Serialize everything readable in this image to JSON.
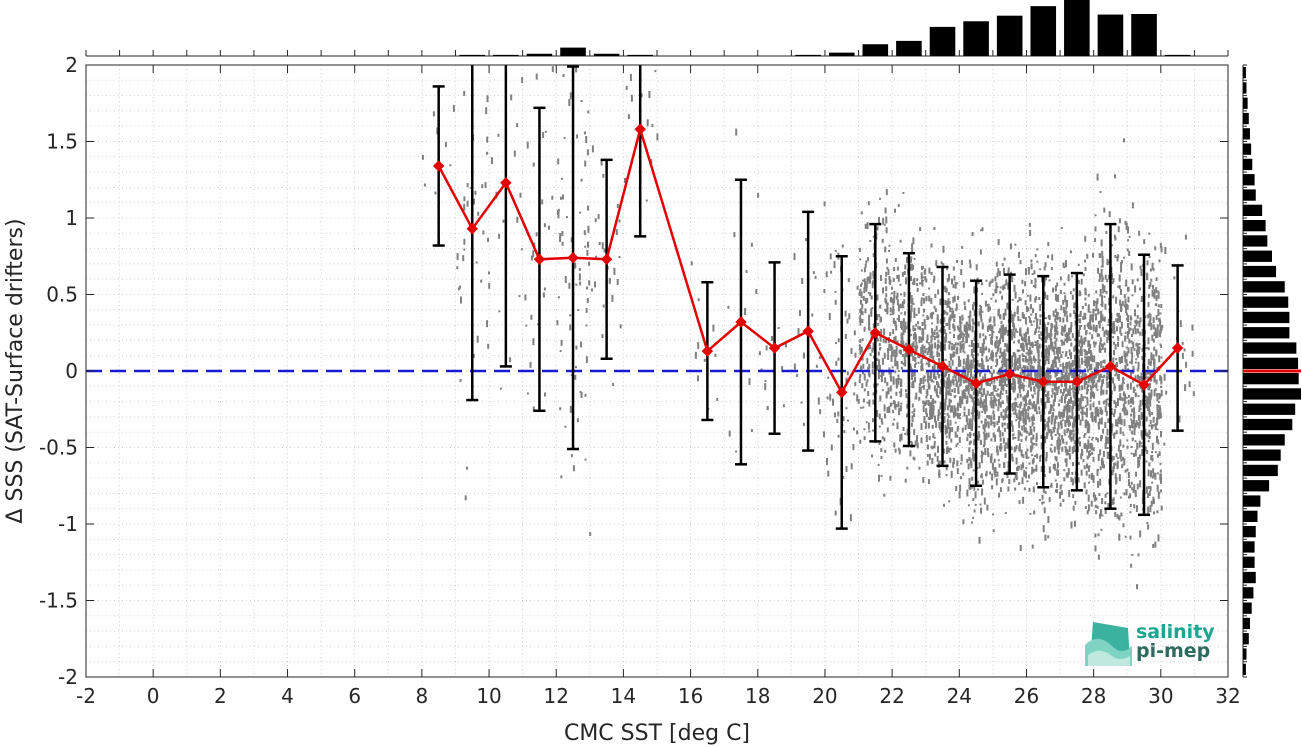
{
  "chart_data": {
    "type": "scatter",
    "xlabel": "CMC SST [deg C]",
    "ylabel": "Δ SSS (SAT-Surface drifters)",
    "xlim": [
      -2,
      32
    ],
    "ylim": [
      -2,
      2
    ],
    "xticks": [
      -2,
      0,
      2,
      4,
      6,
      8,
      10,
      12,
      14,
      16,
      18,
      20,
      22,
      24,
      26,
      28,
      30,
      32
    ],
    "yticks": [
      -2,
      -1.5,
      -1,
      -0.5,
      0,
      0.5,
      1,
      1.5,
      2
    ],
    "xtick_labels": [
      "-2",
      "0",
      "2",
      "4",
      "6",
      "8",
      "10",
      "12",
      "14",
      "16",
      "18",
      "20",
      "22",
      "24",
      "26",
      "28",
      "30",
      "32"
    ],
    "ytick_labels": [
      "-2",
      "-1.5",
      "-1",
      "-0.5",
      "0",
      "0.5",
      "1",
      "1.5",
      "2"
    ],
    "grid": "on (dotted, minor)",
    "reference_line": {
      "y": 0,
      "style": "dashed",
      "color": "#1a1ad6"
    },
    "mean_series": {
      "color": "#e30000",
      "marker": "diamond",
      "x": [
        8.5,
        9.5,
        10.5,
        11.5,
        12.5,
        13.5,
        14.5,
        16.5,
        17.5,
        18.5,
        19.5,
        20.5,
        21.5,
        22.5,
        23.5,
        24.5,
        25.5,
        26.5,
        27.5,
        28.5,
        29.5,
        30.5
      ],
      "y": [
        1.34,
        0.93,
        1.23,
        0.73,
        0.74,
        0.73,
        1.58,
        0.13,
        0.32,
        0.15,
        0.26,
        -0.14,
        0.25,
        0.14,
        0.03,
        -0.08,
        -0.02,
        -0.07,
        -0.07,
        0.03,
        -0.09,
        0.15
      ],
      "std": [
        0.52,
        1.12,
        1.2,
        0.99,
        1.25,
        0.65,
        0.7,
        0.45,
        0.93,
        0.56,
        0.78,
        0.89,
        0.71,
        0.63,
        0.65,
        0.67,
        0.65,
        0.69,
        0.71,
        0.93,
        0.85,
        0.54
      ]
    },
    "scatter_color": "#808080",
    "top_histogram": {
      "bin_centers": [
        9.5,
        10.5,
        11.5,
        12.5,
        13.5,
        14.5,
        19.5,
        20.5,
        21.5,
        22.5,
        23.5,
        24.5,
        25.5,
        26.5,
        27.5,
        28.5,
        29.5,
        30.5
      ],
      "relative_heights": [
        0.02,
        0.02,
        0.04,
        0.15,
        0.04,
        0.02,
        0.02,
        0.06,
        0.21,
        0.27,
        0.52,
        0.62,
        0.72,
        0.89,
        1.0,
        0.74,
        0.75,
        0.02
      ]
    },
    "right_histogram": {
      "bin_centers": [
        1.95,
        1.85,
        1.75,
        1.65,
        1.55,
        1.45,
        1.35,
        1.25,
        1.15,
        1.05,
        0.95,
        0.85,
        0.75,
        0.65,
        0.55,
        0.45,
        0.35,
        0.25,
        0.15,
        0.05,
        -0.05,
        -0.15,
        -0.25,
        -0.35,
        -0.45,
        -0.55,
        -0.65,
        -0.75,
        -0.85,
        -0.95,
        -1.05,
        -1.15,
        -1.25,
        -1.35,
        -1.45,
        -1.55,
        -1.65,
        -1.75,
        -1.85,
        -1.95
      ],
      "relative_lengths": [
        0.05,
        0.06,
        0.08,
        0.1,
        0.12,
        0.14,
        0.16,
        0.2,
        0.22,
        0.33,
        0.39,
        0.42,
        0.5,
        0.57,
        0.72,
        0.78,
        0.8,
        0.8,
        0.92,
        0.95,
        0.96,
        1.0,
        0.9,
        0.85,
        0.72,
        0.65,
        0.6,
        0.45,
        0.3,
        0.25,
        0.22,
        0.2,
        0.2,
        0.22,
        0.18,
        0.15,
        0.12,
        0.1,
        0.06,
        0.05
      ],
      "mean_marker_y": 0,
      "mean_marker_color": "#e30000"
    }
  },
  "logo": {
    "line1": "salinity",
    "line2": "pi-mep",
    "color_teal": "#1aa68f",
    "color_dark": "#2e6b5f"
  }
}
